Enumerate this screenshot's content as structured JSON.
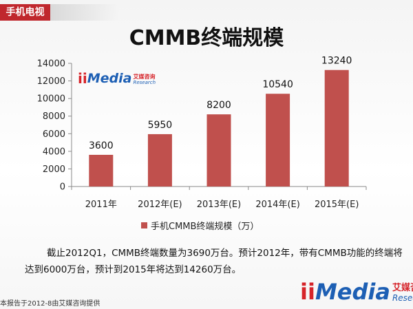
{
  "header": {
    "tag": "手机电视"
  },
  "title": "CMMB终端规模",
  "chart_data": {
    "type": "bar",
    "categories": [
      "2011年",
      "2012年(E)",
      "2013年(E)",
      "2014年(E)",
      "2015年(E)"
    ],
    "series": [
      {
        "name": "手机CMMB终端规模（万）",
        "values": [
          3600,
          5950,
          8200,
          10540,
          13240
        ],
        "color": "#c0504d"
      }
    ],
    "data_labels": [
      "3600",
      "5950",
      "8200",
      "10540",
      "13240"
    ],
    "ylim": [
      0,
      14000
    ],
    "yticks": [
      0,
      2000,
      4000,
      6000,
      8000,
      10000,
      12000,
      14000
    ],
    "grid": false,
    "legend_position": "bottom"
  },
  "legend": {
    "label": "手机CMMB终端规模（万）"
  },
  "caption": "截止2012Q1，CMMB终端数量为3690万台。预计2012年，带有CMMB功能的终端将达到6000万台，预计到2015年将达到14260万台。",
  "footer": "本报告于2012-8由艾媒咨询提供",
  "brand": {
    "mark": "ii",
    "name": "Media",
    "cn": "艾媒咨询",
    "en": "Research",
    "colors": {
      "red": "#d6242a",
      "blue": "#1d5fb4"
    }
  }
}
